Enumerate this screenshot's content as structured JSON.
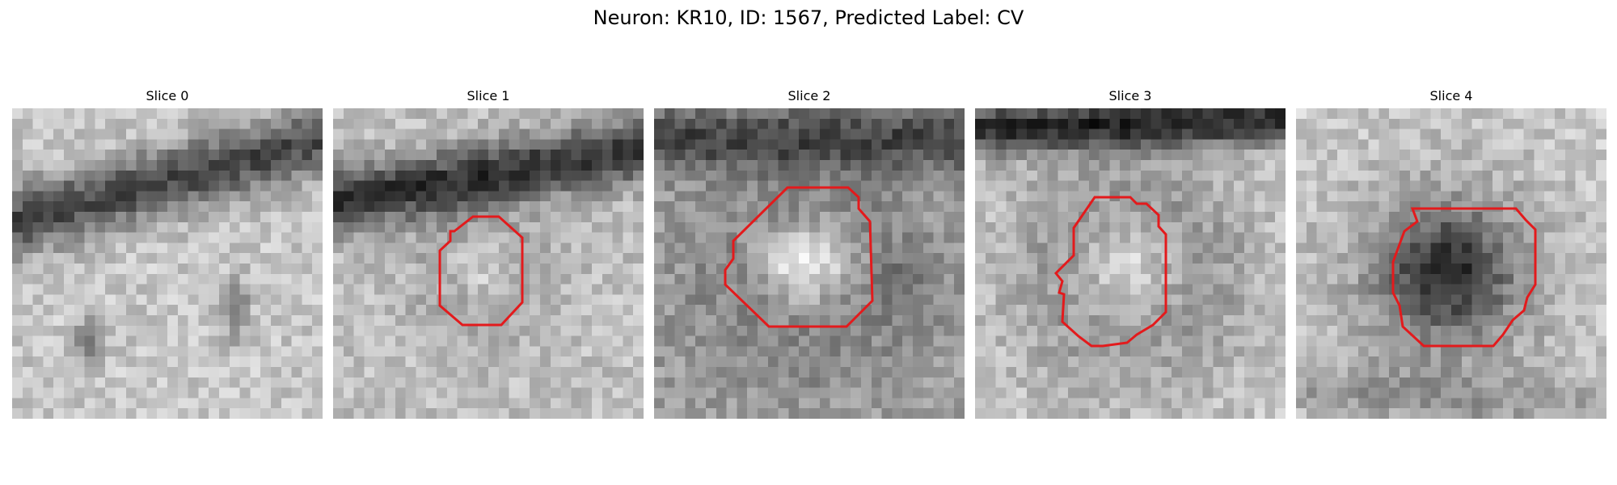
{
  "figure": {
    "title": "Neuron: KR10, ID: 1567, Predicted Label: CV",
    "outline_color": "#e31a1c",
    "panels": [
      {
        "label": "Slice 0",
        "has_outline": false
      },
      {
        "label": "Slice 1",
        "has_outline": true
      },
      {
        "label": "Slice 2",
        "has_outline": true
      },
      {
        "label": "Slice 3",
        "has_outline": true
      },
      {
        "label": "Slice 4",
        "has_outline": true
      }
    ]
  }
}
